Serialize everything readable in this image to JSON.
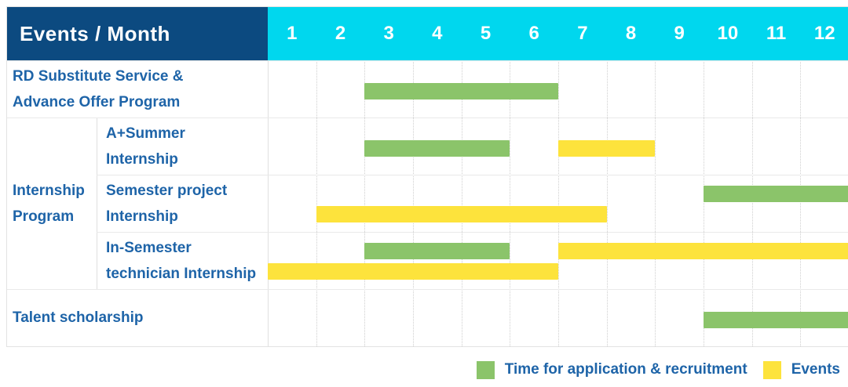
{
  "title": "Events / Month",
  "months": [
    "1",
    "2",
    "3",
    "4",
    "5",
    "6",
    "7",
    "8",
    "9",
    "10",
    "11",
    "12"
  ],
  "colors": {
    "header_navy": "#0C4A80",
    "header_cyan": "#00D7EE",
    "green": "#8BC46A",
    "yellow": "#FDE33C",
    "label_blue": "#1E64A8"
  },
  "legend": {
    "items": [
      {
        "color_key": "green",
        "label": "Time for application & recruitment"
      },
      {
        "color_key": "yellow",
        "label": "Events"
      }
    ]
  },
  "chart_data": {
    "type": "gantt",
    "title": "Events / Month",
    "x_axis": {
      "title": "Month",
      "ticks": [
        1,
        2,
        3,
        4,
        5,
        6,
        7,
        8,
        9,
        10,
        11,
        12
      ],
      "range": [
        1,
        12
      ]
    },
    "series_legend": [
      {
        "name": "Time for application & recruitment",
        "color_key": "green"
      },
      {
        "name": "Events",
        "color_key": "yellow"
      }
    ],
    "group_label_lines": [
      "Internship",
      "Program"
    ],
    "rows": [
      {
        "label_lines": [
          "RD Substitute Service &",
          "Advance Offer Program"
        ],
        "group": "",
        "bars": [
          {
            "series": "Time for application & recruitment",
            "start_month": 3,
            "end_month": 6,
            "lane": "center"
          }
        ]
      },
      {
        "label_lines": [
          "A+Summer",
          "Internship"
        ],
        "group": "Internship Program",
        "bars": [
          {
            "series": "Time for application & recruitment",
            "start_month": 3,
            "end_month": 5,
            "lane": "center"
          },
          {
            "series": "Events",
            "start_month": 7,
            "end_month": 8,
            "lane": "center"
          }
        ]
      },
      {
        "label_lines": [
          "Semester project",
          "Internship"
        ],
        "group": "Internship Program",
        "bars": [
          {
            "series": "Time for application & recruitment",
            "start_month": 10,
            "end_month": 12,
            "lane": "top"
          },
          {
            "series": "Events",
            "start_month": 2,
            "end_month": 7,
            "lane": "bottom"
          }
        ]
      },
      {
        "label_lines": [
          "In-Semester",
          "technician Internship"
        ],
        "group": "Internship Program",
        "bars": [
          {
            "series": "Time for application & recruitment",
            "start_month": 3,
            "end_month": 5,
            "lane": "top"
          },
          {
            "series": "Events",
            "start_month": 7,
            "end_month": 12,
            "lane": "top"
          },
          {
            "series": "Events",
            "start_month": 1,
            "end_month": 6,
            "lane": "bottom"
          }
        ]
      },
      {
        "label_lines": [
          "Talent scholarship"
        ],
        "group": "",
        "bars": [
          {
            "series": "Time for application & recruitment",
            "start_month": 10,
            "end_month": 12,
            "lane": "center"
          }
        ]
      }
    ]
  }
}
